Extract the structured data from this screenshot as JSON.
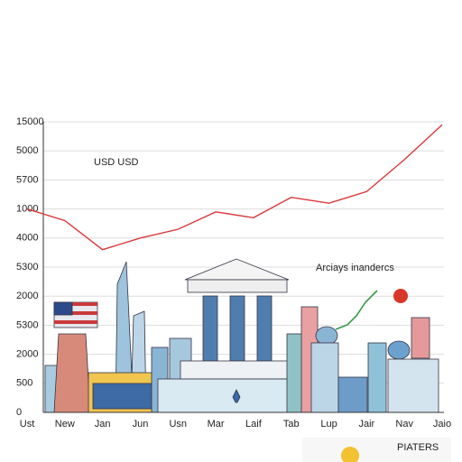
{
  "chart_data": {
    "type": "line",
    "categories": [
      "Ust",
      "New",
      "Jan",
      "Jun",
      "Usn",
      "Mar",
      "Laif",
      "Tab",
      "Lup",
      "Jair",
      "Nav",
      "Jaio"
    ],
    "series": [
      {
        "name": "USD USD",
        "color": "#d9383a",
        "values": [
          7.0,
          6.6,
          5.6,
          6.0,
          6.3,
          6.9,
          6.7,
          7.4,
          7.2,
          7.6,
          8.7,
          9.9
        ]
      }
    ],
    "ylim": [
      0,
      10
    ],
    "yticks": [
      0,
      {
        "value": 1,
        "label": "500"
      },
      {
        "value": 2,
        "label": "2000"
      },
      {
        "value": 3,
        "label": "5300"
      },
      {
        "value": 4,
        "label": "2000"
      },
      {
        "value": 5,
        "label": "5300"
      },
      {
        "value": 6,
        "label": "4000"
      },
      {
        "value": 7,
        "label": "1000"
      },
      {
        "value": 8,
        "label": "5700"
      },
      {
        "value": 9,
        "label": "5000"
      },
      {
        "value": 10,
        "label": "15000"
      }
    ],
    "grid": true,
    "annotations": [
      "USD USD",
      "Arciays inandercs"
    ],
    "footer": "PIATERS"
  }
}
